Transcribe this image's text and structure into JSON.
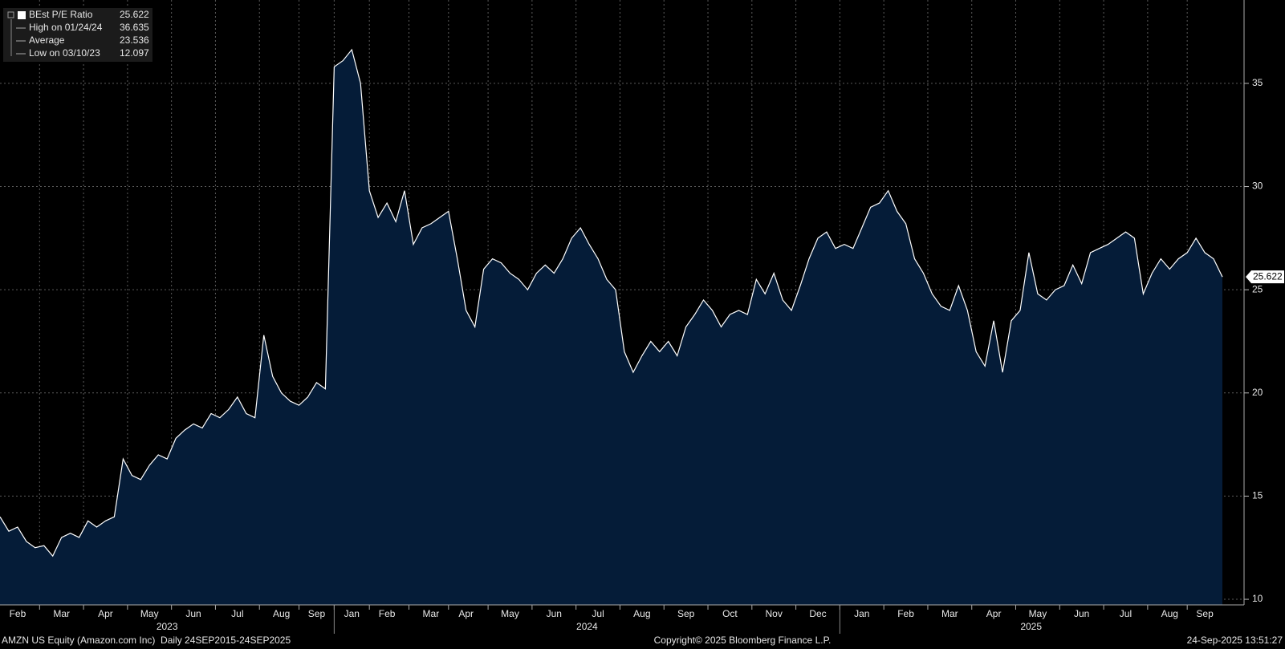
{
  "chart_data": {
    "type": "area",
    "categories": [
      null,
      null,
      "Feb",
      null,
      null,
      null,
      null,
      "Mar",
      null,
      null,
      null,
      null,
      "Apr",
      null,
      null,
      null,
      null,
      "May",
      null,
      null,
      null,
      null,
      "Jun",
      null,
      null,
      null,
      null,
      "Jul",
      null,
      null,
      null,
      null,
      "Aug",
      null,
      null,
      null,
      "Sep",
      null,
      null,
      null,
      "Jan",
      null,
      null,
      null,
      "Feb",
      null,
      null,
      null,
      null,
      "Mar",
      null,
      null,
      null,
      "Apr",
      null,
      null,
      null,
      null,
      "May",
      null,
      null,
      null,
      null,
      "Jun",
      null,
      null,
      null,
      null,
      "Jul",
      null,
      null,
      null,
      null,
      "Aug",
      null,
      null,
      null,
      null,
      "Sep",
      null,
      null,
      null,
      null,
      "Oct",
      null,
      null,
      null,
      null,
      "Nov",
      null,
      null,
      null,
      null,
      "Dec",
      null,
      null,
      null,
      null,
      "Jan",
      null,
      null,
      null,
      null,
      "Feb",
      null,
      null,
      null,
      null,
      "Mar",
      null,
      null,
      null,
      null,
      "Apr",
      null,
      null,
      null,
      null,
      "May",
      null,
      null,
      null,
      null,
      "Jun",
      null,
      null,
      null,
      null,
      "Jul",
      null,
      null,
      null,
      null,
      "Aug",
      null,
      null,
      null,
      "Sep",
      null,
      null
    ],
    "years": [
      "2023",
      "2024",
      "2025"
    ],
    "series": [
      {
        "name": "BEst P/E Ratio",
        "color": "#ffffff",
        "fill": "#051c38",
        "values": [
          14.0,
          13.3,
          13.5,
          12.8,
          12.5,
          12.6,
          12.097,
          13.0,
          13.2,
          13.0,
          13.8,
          13.5,
          13.8,
          14.0,
          16.8,
          16.0,
          15.8,
          16.5,
          17.0,
          16.8,
          17.8,
          18.2,
          18.5,
          18.3,
          19.0,
          18.8,
          19.2,
          19.8,
          19.0,
          18.8,
          22.8,
          20.8,
          20.0,
          19.6,
          19.4,
          19.8,
          20.5,
          20.2,
          35.8,
          36.1,
          36.635,
          35.0,
          29.8,
          28.5,
          29.2,
          28.3,
          29.8,
          27.2,
          28.0,
          28.2,
          28.5,
          28.8,
          26.5,
          24.0,
          23.2,
          26.0,
          26.5,
          26.3,
          25.8,
          25.5,
          25.0,
          25.8,
          26.2,
          25.8,
          26.5,
          27.5,
          28.0,
          27.2,
          26.5,
          25.5,
          25.0,
          22.0,
          21.0,
          21.8,
          22.5,
          22.0,
          22.5,
          21.8,
          23.2,
          23.8,
          24.5,
          24.0,
          23.2,
          23.8,
          24.0,
          23.8,
          25.5,
          24.8,
          25.8,
          24.5,
          24.0,
          25.2,
          26.5,
          27.5,
          27.8,
          27.0,
          27.2,
          27.0,
          28.0,
          29.0,
          29.2,
          29.8,
          28.8,
          28.2,
          26.5,
          25.8,
          24.8,
          24.2,
          24.0,
          25.2,
          24.0,
          22.0,
          21.3,
          23.5,
          21.0,
          23.5,
          24.0,
          26.8,
          24.8,
          24.5,
          25.0,
          25.2,
          26.2,
          25.3,
          26.8,
          27.0,
          27.2,
          27.5,
          27.8,
          27.5,
          24.8,
          25.8,
          26.5,
          26.0,
          26.5,
          26.8,
          27.5,
          26.8,
          26.5,
          25.622
        ]
      }
    ],
    "stats": [
      {
        "label": "High on 01/24/24",
        "value": 36.635
      },
      {
        "label": "Average",
        "value": 23.536
      },
      {
        "label": "Low on 03/10/23",
        "value": 12.097
      }
    ],
    "ylim": [
      9.73,
      39.04
    ],
    "yticks": [
      10,
      15,
      20,
      25,
      30,
      35
    ],
    "grid": true,
    "legend": "top-left",
    "footer": {
      "left": "AMZN US Equity (Amazon.com Inc)  Daily 24SEP2015-24SEP2025",
      "center": "Copyright© 2025 Bloomberg Finance L.P.",
      "right": "24-Sep-2025 13:51:27"
    }
  }
}
